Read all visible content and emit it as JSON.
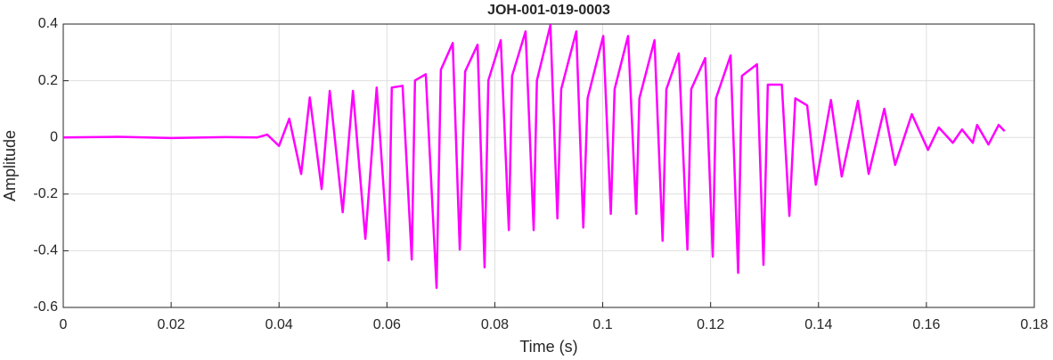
{
  "chart_data": {
    "type": "line",
    "title": "JOH-001-019-0003",
    "x_label": "Time (s)",
    "y_label": "Amplitude",
    "color": "#ff00ff",
    "grid": true,
    "xlim": [
      0,
      0.18
    ],
    "xticks": [
      0,
      0.02,
      0.04,
      0.06,
      0.08,
      0.1,
      0.12,
      0.14,
      0.16,
      0.18
    ],
    "ylim": [
      -0.6,
      0.4
    ],
    "yticks": [
      -0.6,
      -0.4,
      -0.2,
      0,
      0.2,
      0.4
    ],
    "x": [
      0,
      0.01,
      0.02,
      0.03,
      0.036,
      0.0378,
      0.04,
      0.0419,
      0.0441,
      0.0457,
      0.0479,
      0.0494,
      0.0518,
      0.0537,
      0.056,
      0.0581,
      0.0603,
      0.0609,
      0.0629,
      0.0646,
      0.0652,
      0.0672,
      0.0692,
      0.07,
      0.0722,
      0.0735,
      0.0745,
      0.0768,
      0.0781,
      0.0788,
      0.0811,
      0.0826,
      0.0832,
      0.0857,
      0.0872,
      0.0878,
      0.0903,
      0.0916,
      0.0923,
      0.0951,
      0.0964,
      0.0972,
      0.1001,
      0.1015,
      0.1022,
      0.1047,
      0.1062,
      0.1068,
      0.1096,
      0.1111,
      0.1118,
      0.1141,
      0.1157,
      0.1164,
      0.119,
      0.1204,
      0.121,
      0.1237,
      0.1251,
      0.1258,
      0.1286,
      0.1298,
      0.1306,
      0.1332,
      0.1346,
      0.1357,
      0.1379,
      0.1395,
      0.1423,
      0.1443,
      0.1473,
      0.1493,
      0.1522,
      0.1542,
      0.1573,
      0.1603,
      0.1623,
      0.1649,
      0.1666,
      0.1686,
      0.1694,
      0.1715,
      0.1734,
      0.1745
    ],
    "series": [
      {
        "color": "#ff00ff",
        "values": [
          0,
          0.002,
          -0.002,
          0.001,
          0,
          0.01,
          -0.03,
          0.066,
          -0.129,
          0.141,
          -0.182,
          0.164,
          -0.264,
          0.164,
          -0.358,
          0.176,
          -0.434,
          0.176,
          0.182,
          -0.431,
          0.201,
          0.223,
          -0.531,
          0.239,
          0.333,
          -0.396,
          0.233,
          0.327,
          -0.459,
          0.201,
          0.343,
          -0.327,
          0.217,
          0.374,
          -0.327,
          0.201,
          0.396,
          -0.286,
          0.17,
          0.374,
          -0.318,
          0.138,
          0.358,
          -0.27,
          0.17,
          0.358,
          -0.27,
          0.138,
          0.343,
          -0.365,
          0.17,
          0.296,
          -0.396,
          0.17,
          0.28,
          -0.421,
          0.138,
          0.289,
          -0.478,
          0.217,
          0.258,
          -0.45,
          0.186,
          0.186,
          -0.277,
          0.138,
          0.113,
          -0.167,
          0.132,
          -0.138,
          0.129,
          -0.129,
          0.101,
          -0.097,
          0.082,
          -0.044,
          0.035,
          -0.019,
          0.028,
          -0.019,
          0.044,
          -0.025,
          0.044,
          0.022
        ]
      }
    ]
  }
}
